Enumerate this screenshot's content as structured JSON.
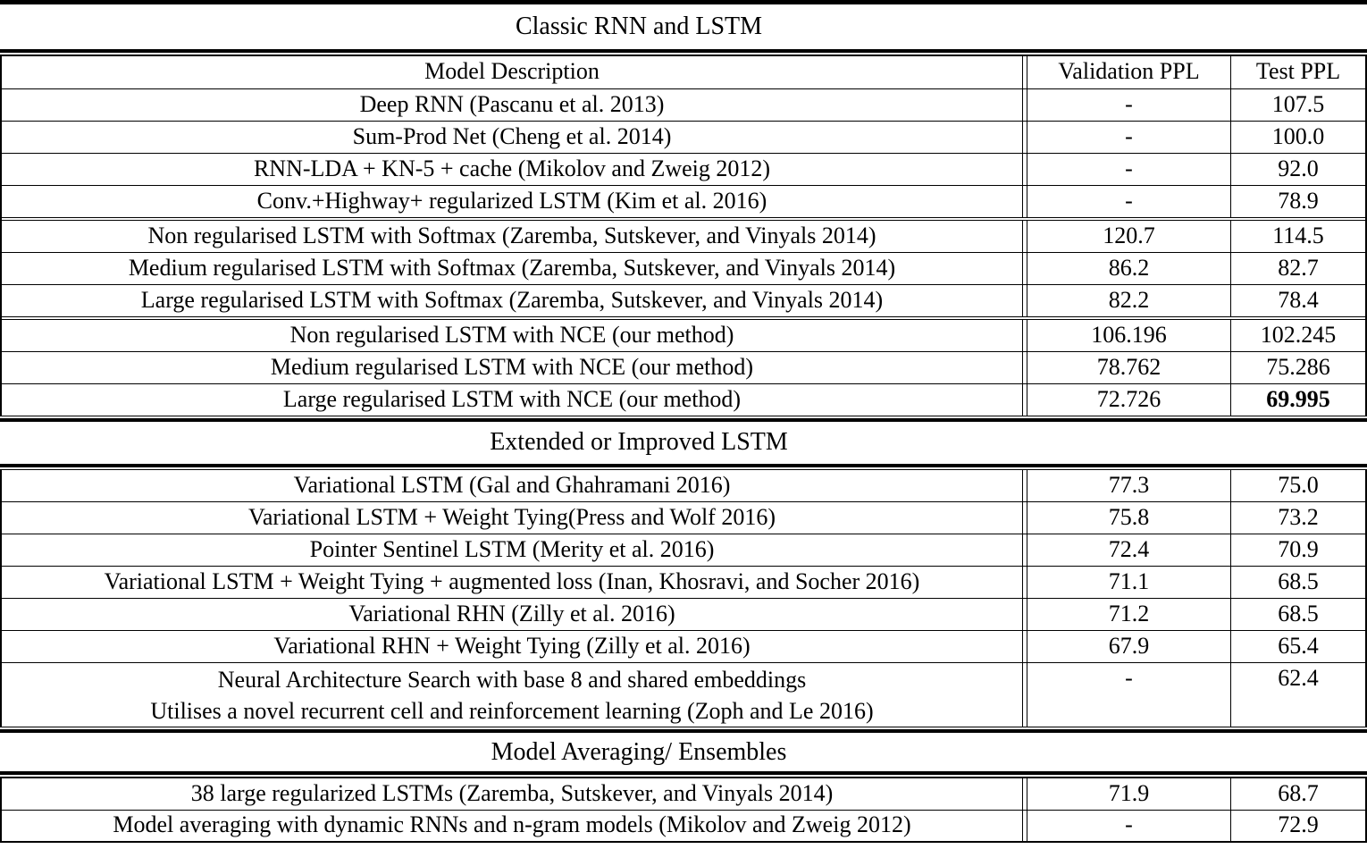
{
  "page": {
    "background": "#ffffff",
    "rule_color": "#000000"
  },
  "columns": {
    "description": "Model Description",
    "validation": "Validation PPL",
    "test": "Test PPL"
  },
  "sections": [
    {
      "title": "Classic RNN and LSTM",
      "show_header": true,
      "groups": [
        {
          "rows": [
            {
              "description": "Deep RNN (Pascanu et al. 2013)",
              "validation": "-",
              "test": "107.5"
            },
            {
              "description": "Sum-Prod Net (Cheng et al. 2014)",
              "validation": "-",
              "test": "100.0"
            },
            {
              "description": "RNN-LDA + KN-5 + cache (Mikolov and Zweig 2012)",
              "validation": "-",
              "test": "92.0"
            },
            {
              "description": "Conv.+Highway+ regularized LSTM (Kim et al. 2016)",
              "validation": "-",
              "test": "78.9"
            }
          ]
        },
        {
          "rows": [
            {
              "description": "Non regularised LSTM with Softmax (Zaremba, Sutskever, and Vinyals 2014)",
              "validation": "120.7",
              "test": "114.5"
            },
            {
              "description": "Medium regularised LSTM with Softmax (Zaremba, Sutskever, and Vinyals 2014)",
              "validation": "86.2",
              "test": "82.7"
            },
            {
              "description": "Large regularised LSTM with Softmax (Zaremba, Sutskever, and Vinyals 2014)",
              "validation": "82.2",
              "test": "78.4"
            }
          ]
        },
        {
          "rows": [
            {
              "description": "Non regularised LSTM with NCE (our method)",
              "validation": "106.196",
              "test": "102.245"
            },
            {
              "description": "Medium regularised LSTM with NCE (our method)",
              "validation": "78.762",
              "test": "75.286"
            },
            {
              "description": "Large regularised LSTM with NCE (our method)",
              "validation": "72.726",
              "test": "69.995",
              "test_bold": true
            }
          ]
        }
      ]
    },
    {
      "title": "Extended or Improved LSTM",
      "show_header": false,
      "groups": [
        {
          "rows": [
            {
              "description": "Variational LSTM (Gal and Ghahramani 2016)",
              "validation": "77.3",
              "test": "75.0"
            },
            {
              "description": "Variational LSTM + Weight Tying(Press and Wolf 2016)",
              "validation": "75.8",
              "test": "73.2"
            },
            {
              "description": "Pointer Sentinel LSTM (Merity et al. 2016)",
              "validation": "72.4",
              "test": "70.9"
            },
            {
              "description": "Variational LSTM + Weight Tying + augmented loss (Inan, Khosravi, and Socher 2016)",
              "validation": "71.1",
              "test": "68.5"
            },
            {
              "description": "Variational RHN (Zilly et al. 2016)",
              "validation": "71.2",
              "test": "68.5"
            },
            {
              "description": "Variational RHN + Weight Tying (Zilly et al. 2016)",
              "validation": "67.9",
              "test": "65.4"
            },
            {
              "description_lines": [
                "Neural Architecture Search with base 8 and shared embeddings",
                "Utilises a novel recurrent cell and reinforcement learning (Zoph and Le 2016)"
              ],
              "validation": "-",
              "test": "62.4",
              "tall": true
            }
          ]
        }
      ]
    },
    {
      "title": "Model Averaging/ Ensembles",
      "show_header": false,
      "groups": [
        {
          "rows": [
            {
              "description": "38 large regularized LSTMs (Zaremba, Sutskever, and Vinyals 2014)",
              "validation": "71.9",
              "test": "68.7"
            },
            {
              "description": "Model averaging with dynamic RNNs and n-gram models (Mikolov and Zweig 2012)",
              "validation": "-",
              "test": "72.9"
            }
          ]
        }
      ]
    }
  ]
}
